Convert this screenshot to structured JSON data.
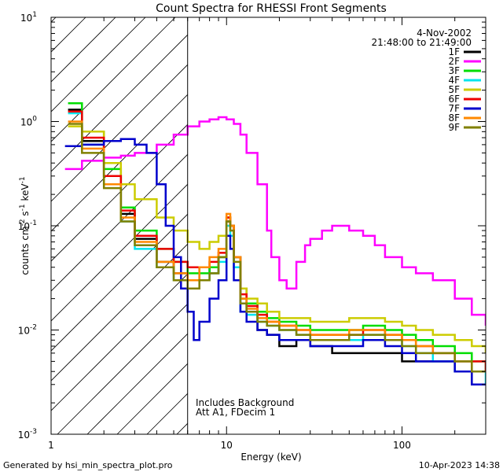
{
  "chart_data": {
    "type": "line",
    "title": "Count Spectra for RHESSI Front Segments",
    "xlabel": "Energy (keV)",
    "ylabel": "counts cm-2 s-1 keV-1",
    "xscale": "log",
    "yscale": "log",
    "xlim": [
      1,
      300
    ],
    "ylim": [
      0.001,
      10
    ],
    "x_ticks": [
      {
        "value": 1,
        "label": "1"
      },
      {
        "value": 10,
        "label": "10"
      },
      {
        "value": 100,
        "label": "100"
      }
    ],
    "y_ticks": [
      {
        "value": 0.001,
        "base": "10",
        "exp": "-3"
      },
      {
        "value": 0.01,
        "base": "10",
        "exp": "-2"
      },
      {
        "value": 0.1,
        "base": "10",
        "exp": "-1"
      },
      {
        "value": 1,
        "base": "10",
        "exp": "0"
      },
      {
        "value": 10,
        "base": "10",
        "exp": "1"
      }
    ],
    "date": "4-Nov-2002",
    "time_range": "21:48:00 to 21:49:00",
    "attenuated_region_max_kev": 6,
    "annotations": [
      "Includes Background",
      "Att A1, FDecim 1"
    ],
    "series": [
      {
        "name": "1F",
        "color": "#000000",
        "x": [
          1.25,
          1.5,
          2,
          2.5,
          3,
          4,
          5,
          6,
          7,
          8,
          9,
          10,
          10.5,
          11,
          12,
          13,
          15,
          17,
          20,
          25,
          30,
          40,
          50,
          60,
          80,
          100,
          120,
          150,
          200,
          250,
          300
        ],
        "y": [
          1.3,
          0.65,
          0.3,
          0.13,
          0.075,
          0.045,
          0.035,
          0.03,
          0.04,
          0.035,
          0.05,
          0.11,
          0.1,
          0.05,
          0.025,
          0.015,
          0.01,
          0.009,
          0.007,
          0.008,
          0.007,
          0.006,
          0.006,
          0.006,
          0.006,
          0.005,
          0.005,
          0.005,
          0.004,
          0.003,
          0.003
        ]
      },
      {
        "name": "2F",
        "color": "#ff00ff",
        "x": [
          1.2,
          1.5,
          2,
          2.5,
          3,
          4,
          5,
          6,
          7,
          8,
          9,
          10,
          11,
          12,
          13,
          15,
          17,
          18,
          20,
          22,
          25,
          28,
          30,
          35,
          40,
          50,
          60,
          70,
          80,
          100,
          120,
          150,
          200,
          250,
          300
        ],
        "y": [
          0.35,
          0.42,
          0.45,
          0.47,
          0.5,
          0.6,
          0.75,
          0.9,
          1.0,
          1.05,
          1.1,
          1.05,
          0.95,
          0.75,
          0.5,
          0.25,
          0.09,
          0.05,
          0.03,
          0.025,
          0.045,
          0.065,
          0.075,
          0.09,
          0.1,
          0.09,
          0.08,
          0.065,
          0.05,
          0.04,
          0.035,
          0.03,
          0.02,
          0.014,
          0.011
        ]
      },
      {
        "name": "3F",
        "color": "#00dd00",
        "x": [
          1.25,
          1.5,
          2,
          2.5,
          3,
          4,
          5,
          6,
          7,
          8,
          9,
          10,
          10.5,
          11,
          12,
          13,
          15,
          17,
          20,
          25,
          30,
          40,
          50,
          60,
          80,
          100,
          120,
          150,
          200,
          250,
          300
        ],
        "y": [
          1.5,
          0.8,
          0.35,
          0.15,
          0.09,
          0.06,
          0.045,
          0.035,
          0.035,
          0.04,
          0.05,
          0.12,
          0.1,
          0.05,
          0.02,
          0.018,
          0.015,
          0.013,
          0.012,
          0.011,
          0.01,
          0.01,
          0.01,
          0.011,
          0.01,
          0.009,
          0.008,
          0.007,
          0.006,
          0.005,
          0.004
        ]
      },
      {
        "name": "4F",
        "color": "#00e5ee",
        "x": [
          1.25,
          1.5,
          2,
          2.5,
          3,
          4,
          5,
          6,
          7,
          8,
          9,
          10,
          10.5,
          11,
          12,
          13,
          15,
          17,
          20,
          25,
          30,
          40,
          50,
          60,
          80,
          100,
          120,
          150,
          200,
          250,
          300
        ],
        "y": [
          1.2,
          0.6,
          0.25,
          0.11,
          0.06,
          0.04,
          0.03,
          0.03,
          0.03,
          0.035,
          0.045,
          0.1,
          0.08,
          0.04,
          0.015,
          0.014,
          0.012,
          0.011,
          0.01,
          0.009,
          0.008,
          0.008,
          0.008,
          0.009,
          0.008,
          0.007,
          0.006,
          0.005,
          0.004,
          0.004,
          0.003
        ]
      },
      {
        "name": "5F",
        "color": "#cccc00",
        "x": [
          1.25,
          1.5,
          2,
          2.5,
          3,
          4,
          5,
          6,
          7,
          8,
          9,
          10,
          10.5,
          11,
          12,
          13,
          15,
          17,
          20,
          25,
          30,
          40,
          50,
          60,
          80,
          100,
          120,
          150,
          200,
          250,
          300
        ],
        "y": [
          0.9,
          0.8,
          0.4,
          0.25,
          0.18,
          0.12,
          0.09,
          0.07,
          0.06,
          0.07,
          0.08,
          0.12,
          0.1,
          0.05,
          0.025,
          0.02,
          0.018,
          0.015,
          0.013,
          0.013,
          0.012,
          0.012,
          0.013,
          0.013,
          0.012,
          0.011,
          0.01,
          0.009,
          0.008,
          0.007,
          0.006
        ]
      },
      {
        "name": "6F",
        "color": "#ee0000",
        "x": [
          1.25,
          1.5,
          2,
          2.5,
          3,
          4,
          5,
          6,
          7,
          8,
          9,
          10,
          10.5,
          11,
          12,
          13,
          15,
          17,
          20,
          25,
          30,
          40,
          50,
          60,
          80,
          100,
          120,
          150,
          200,
          250,
          300
        ],
        "y": [
          1.25,
          0.7,
          0.3,
          0.14,
          0.08,
          0.06,
          0.045,
          0.04,
          0.04,
          0.045,
          0.055,
          0.12,
          0.1,
          0.05,
          0.022,
          0.017,
          0.014,
          0.012,
          0.011,
          0.01,
          0.009,
          0.009,
          0.009,
          0.01,
          0.009,
          0.008,
          0.007,
          0.006,
          0.005,
          0.005,
          0.004
        ]
      },
      {
        "name": "7F",
        "color": "#0000cc",
        "x": [
          1.2,
          1.5,
          2,
          2.5,
          3,
          3.5,
          4,
          4.5,
          5,
          5.5,
          6,
          6.5,
          7,
          8,
          9,
          10,
          10.5,
          11,
          12,
          13,
          15,
          17,
          20,
          25,
          30,
          40,
          50,
          60,
          80,
          100,
          120,
          150,
          200,
          250,
          300
        ],
        "y": [
          0.58,
          0.6,
          0.65,
          0.68,
          0.6,
          0.5,
          0.25,
          0.1,
          0.05,
          0.025,
          0.015,
          0.008,
          0.012,
          0.02,
          0.03,
          0.08,
          0.06,
          0.03,
          0.015,
          0.012,
          0.01,
          0.009,
          0.008,
          0.008,
          0.007,
          0.007,
          0.007,
          0.008,
          0.007,
          0.006,
          0.005,
          0.005,
          0.004,
          0.003,
          0.003
        ]
      },
      {
        "name": "8F",
        "color": "#ff8800",
        "x": [
          1.25,
          1.5,
          2,
          2.5,
          3,
          4,
          5,
          6,
          7,
          8,
          9,
          10,
          10.5,
          11,
          12,
          13,
          15,
          17,
          20,
          25,
          30,
          40,
          50,
          60,
          80,
          100,
          120,
          150,
          200,
          250,
          300
        ],
        "y": [
          1.0,
          0.55,
          0.25,
          0.12,
          0.07,
          0.045,
          0.035,
          0.03,
          0.04,
          0.05,
          0.06,
          0.13,
          0.1,
          0.05,
          0.02,
          0.016,
          0.013,
          0.012,
          0.011,
          0.01,
          0.009,
          0.009,
          0.01,
          0.01,
          0.009,
          0.008,
          0.007,
          0.006,
          0.005,
          0.004,
          0.004
        ]
      },
      {
        "name": "9F",
        "color": "#808000",
        "x": [
          1.25,
          1.5,
          2,
          2.5,
          3,
          4,
          5,
          6,
          7,
          8,
          9,
          10,
          10.5,
          11,
          12,
          13,
          15,
          17,
          20,
          25,
          30,
          40,
          50,
          60,
          80,
          100,
          120,
          150,
          200,
          250,
          300
        ],
        "y": [
          0.95,
          0.5,
          0.23,
          0.11,
          0.065,
          0.04,
          0.03,
          0.025,
          0.03,
          0.035,
          0.05,
          0.11,
          0.09,
          0.045,
          0.018,
          0.015,
          0.012,
          0.011,
          0.01,
          0.009,
          0.008,
          0.008,
          0.009,
          0.009,
          0.008,
          0.007,
          0.006,
          0.006,
          0.005,
          0.004,
          0.004
        ]
      }
    ]
  },
  "footer": {
    "left": "Generated by hsi_min_spectra_plot.pro",
    "right": "10-Apr-2023 14:38"
  }
}
